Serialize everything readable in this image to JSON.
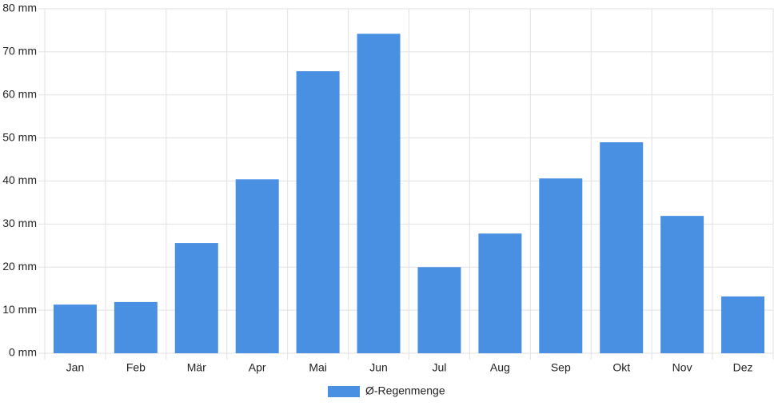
{
  "chart_data": {
    "type": "bar",
    "categories": [
      "Jan",
      "Feb",
      "Mär",
      "Apr",
      "Mai",
      "Jun",
      "Jul",
      "Aug",
      "Sep",
      "Okt",
      "Nov",
      "Dez"
    ],
    "series": [
      {
        "name": "Ø-Regenmenge",
        "color": "#4a90e2",
        "values": [
          11.3,
          11.9,
          25.6,
          40.4,
          65.5,
          74.2,
          20.0,
          27.8,
          40.6,
          49.0,
          31.9,
          13.2
        ]
      }
    ],
    "ylim": [
      0,
      80
    ],
    "yticks": [
      {
        "value": 0,
        "label": "0 mm"
      },
      {
        "value": 10,
        "label": "10 mm"
      },
      {
        "value": 20,
        "label": "20 mm"
      },
      {
        "value": 30,
        "label": "30 mm"
      },
      {
        "value": 40,
        "label": "40 mm"
      },
      {
        "value": 50,
        "label": "50 mm"
      },
      {
        "value": 60,
        "label": "60 mm"
      },
      {
        "value": 70,
        "label": "70 mm"
      },
      {
        "value": 80,
        "label": "80 mm"
      }
    ],
    "grid": true,
    "legend": "bottom"
  }
}
